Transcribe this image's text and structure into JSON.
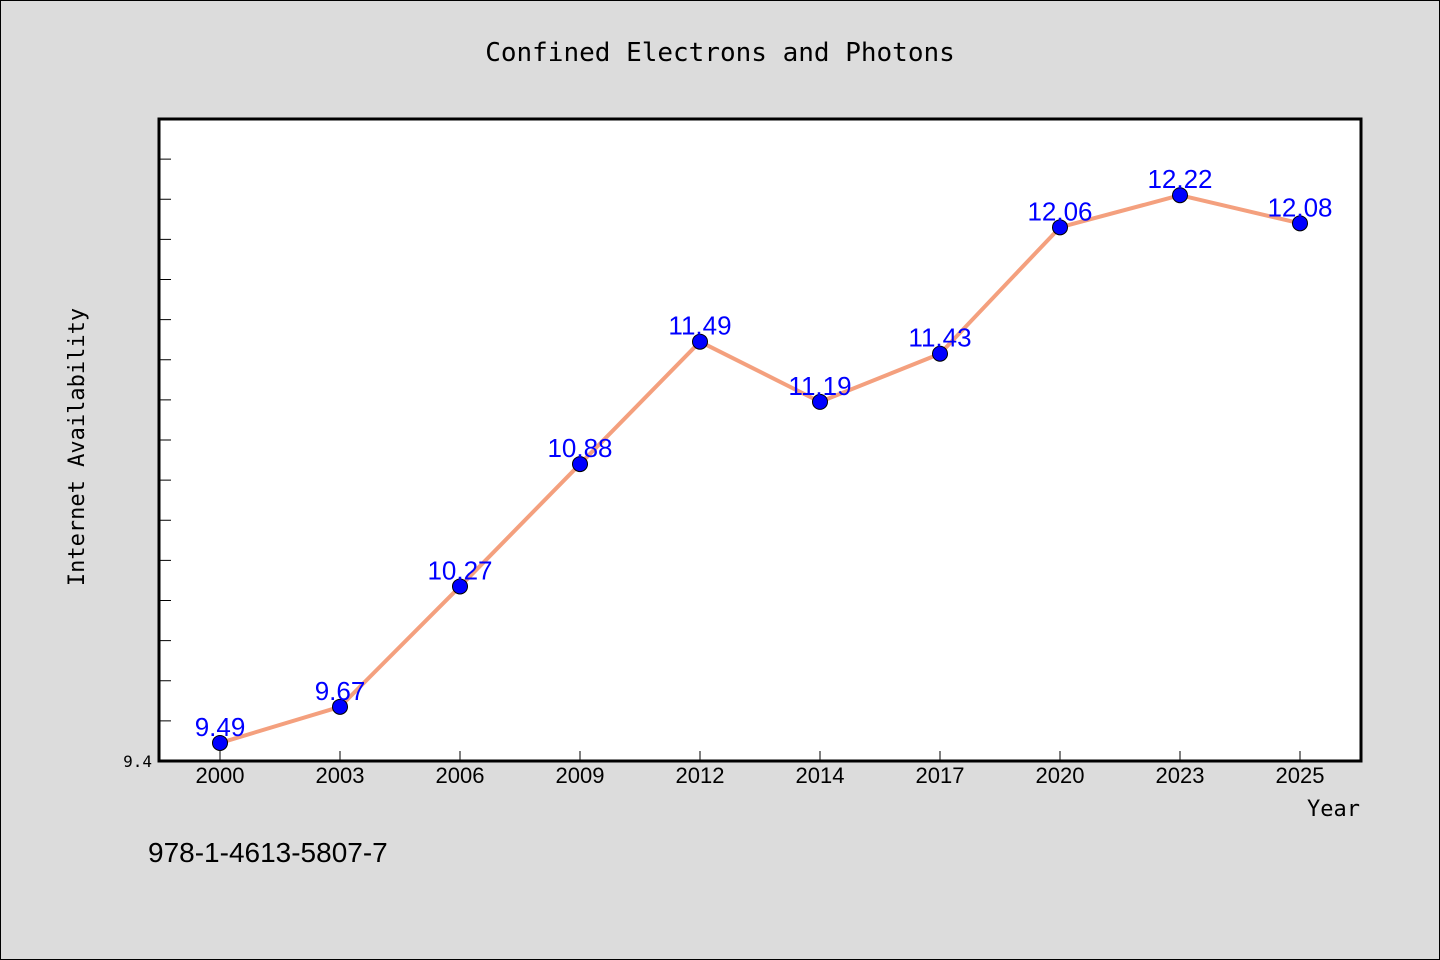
{
  "chart_data": {
    "type": "line",
    "title": "Confined Electrons and Photons",
    "xlabel": "Year",
    "ylabel": "Internet Availability",
    "categories": [
      "2000",
      "2003",
      "2006",
      "2009",
      "2012",
      "2014",
      "2017",
      "2020",
      "2023",
      "2025"
    ],
    "series": [
      {
        "values": [
          9.49,
          9.67,
          10.27,
          10.88,
          11.49,
          11.19,
          11.43,
          12.06,
          12.22,
          12.08
        ],
        "data_labels": [
          "9.49",
          "9.67",
          "10.27",
          "10.88",
          "11.49",
          "11.19",
          "11.43",
          "12.06",
          "12.22",
          "12.08"
        ]
      }
    ],
    "ylim": [
      9.4,
      12.6
    ],
    "ytick_labels": [
      "9.4"
    ],
    "grid": false,
    "legend": "none",
    "line_color": "#f4a07e",
    "marker_color": "#0000ff",
    "label_color": "#0000ff",
    "plot_background": "#ffffff",
    "figure_background": "#dcdcdc"
  },
  "footer": {
    "isbn": "978-1-4613-5807-7"
  }
}
